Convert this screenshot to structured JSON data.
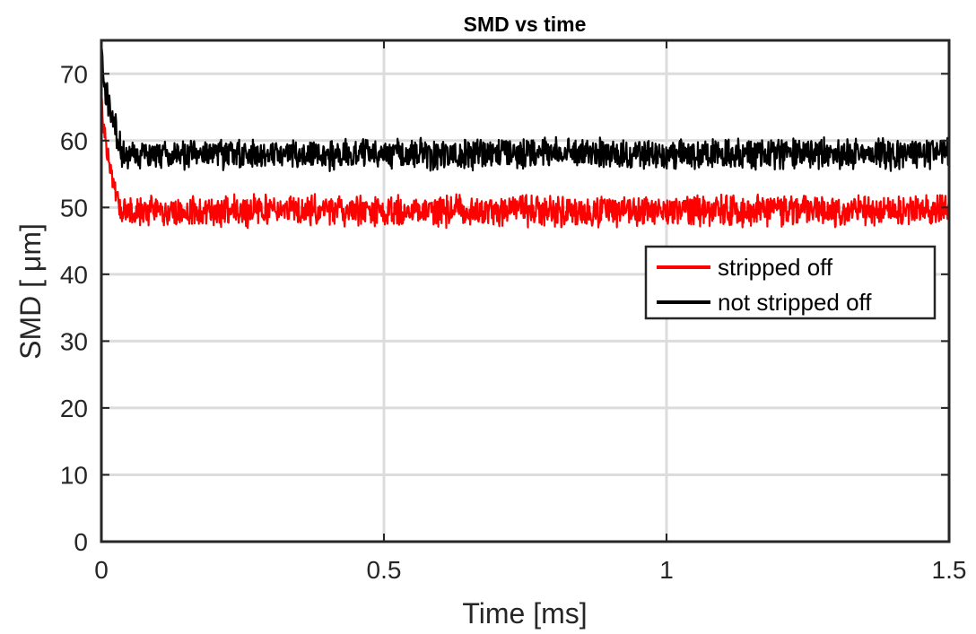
{
  "chart_data": {
    "type": "line",
    "title": "SMD vs time",
    "xlabel": "Time [ms]",
    "ylabel": "SMD [ μm]",
    "xlim": [
      0,
      1.5
    ],
    "ylim": [
      0,
      75
    ],
    "xticks": [
      0,
      0.5,
      1,
      1.5
    ],
    "xtick_labels": [
      "0",
      "0.5",
      "1",
      "1.5"
    ],
    "yticks": [
      0,
      10,
      20,
      30,
      40,
      50,
      60,
      70
    ],
    "ytick_labels": [
      "0",
      "10",
      "20",
      "30",
      "40",
      "50",
      "60",
      "70"
    ],
    "grid": true,
    "legend_position": "right",
    "series": [
      {
        "name": "stripped off",
        "color": "#ff0000",
        "x": [
          0,
          0.005,
          0.01,
          0.015,
          0.02,
          0.025,
          0.03,
          0.035,
          0.04,
          0.05,
          0.1,
          0.2,
          0.3,
          0.4,
          0.5,
          0.6,
          0.7,
          0.8,
          0.9,
          1.0,
          1.1,
          1.2,
          1.3,
          1.4,
          1.5
        ],
        "y": [
          67,
          62,
          58,
          56,
          54,
          52,
          50.5,
          49.5,
          49.5,
          49.5,
          49.5,
          49.5,
          49.5,
          49.5,
          49.5,
          49.5,
          49.5,
          49.5,
          49.5,
          49.5,
          49.5,
          49.5,
          49.5,
          49.5,
          49.5
        ],
        "noise_amplitude": 2.6
      },
      {
        "name": "not stripped off",
        "color": "#000000",
        "x": [
          0,
          0.003,
          0.006,
          0.01,
          0.015,
          0.02,
          0.025,
          0.03,
          0.035,
          0.04,
          0.05,
          0.1,
          0.2,
          0.3,
          0.4,
          0.5,
          0.6,
          0.7,
          0.8,
          0.9,
          1.0,
          1.1,
          1.2,
          1.3,
          1.4,
          1.5
        ],
        "y": [
          74,
          70,
          66,
          67,
          65,
          64,
          62,
          60,
          58.5,
          58,
          58,
          58,
          58,
          58,
          58,
          58,
          58,
          58,
          58,
          58,
          58,
          58,
          58,
          58,
          58,
          58
        ],
        "noise_amplitude": 2.6
      }
    ]
  }
}
